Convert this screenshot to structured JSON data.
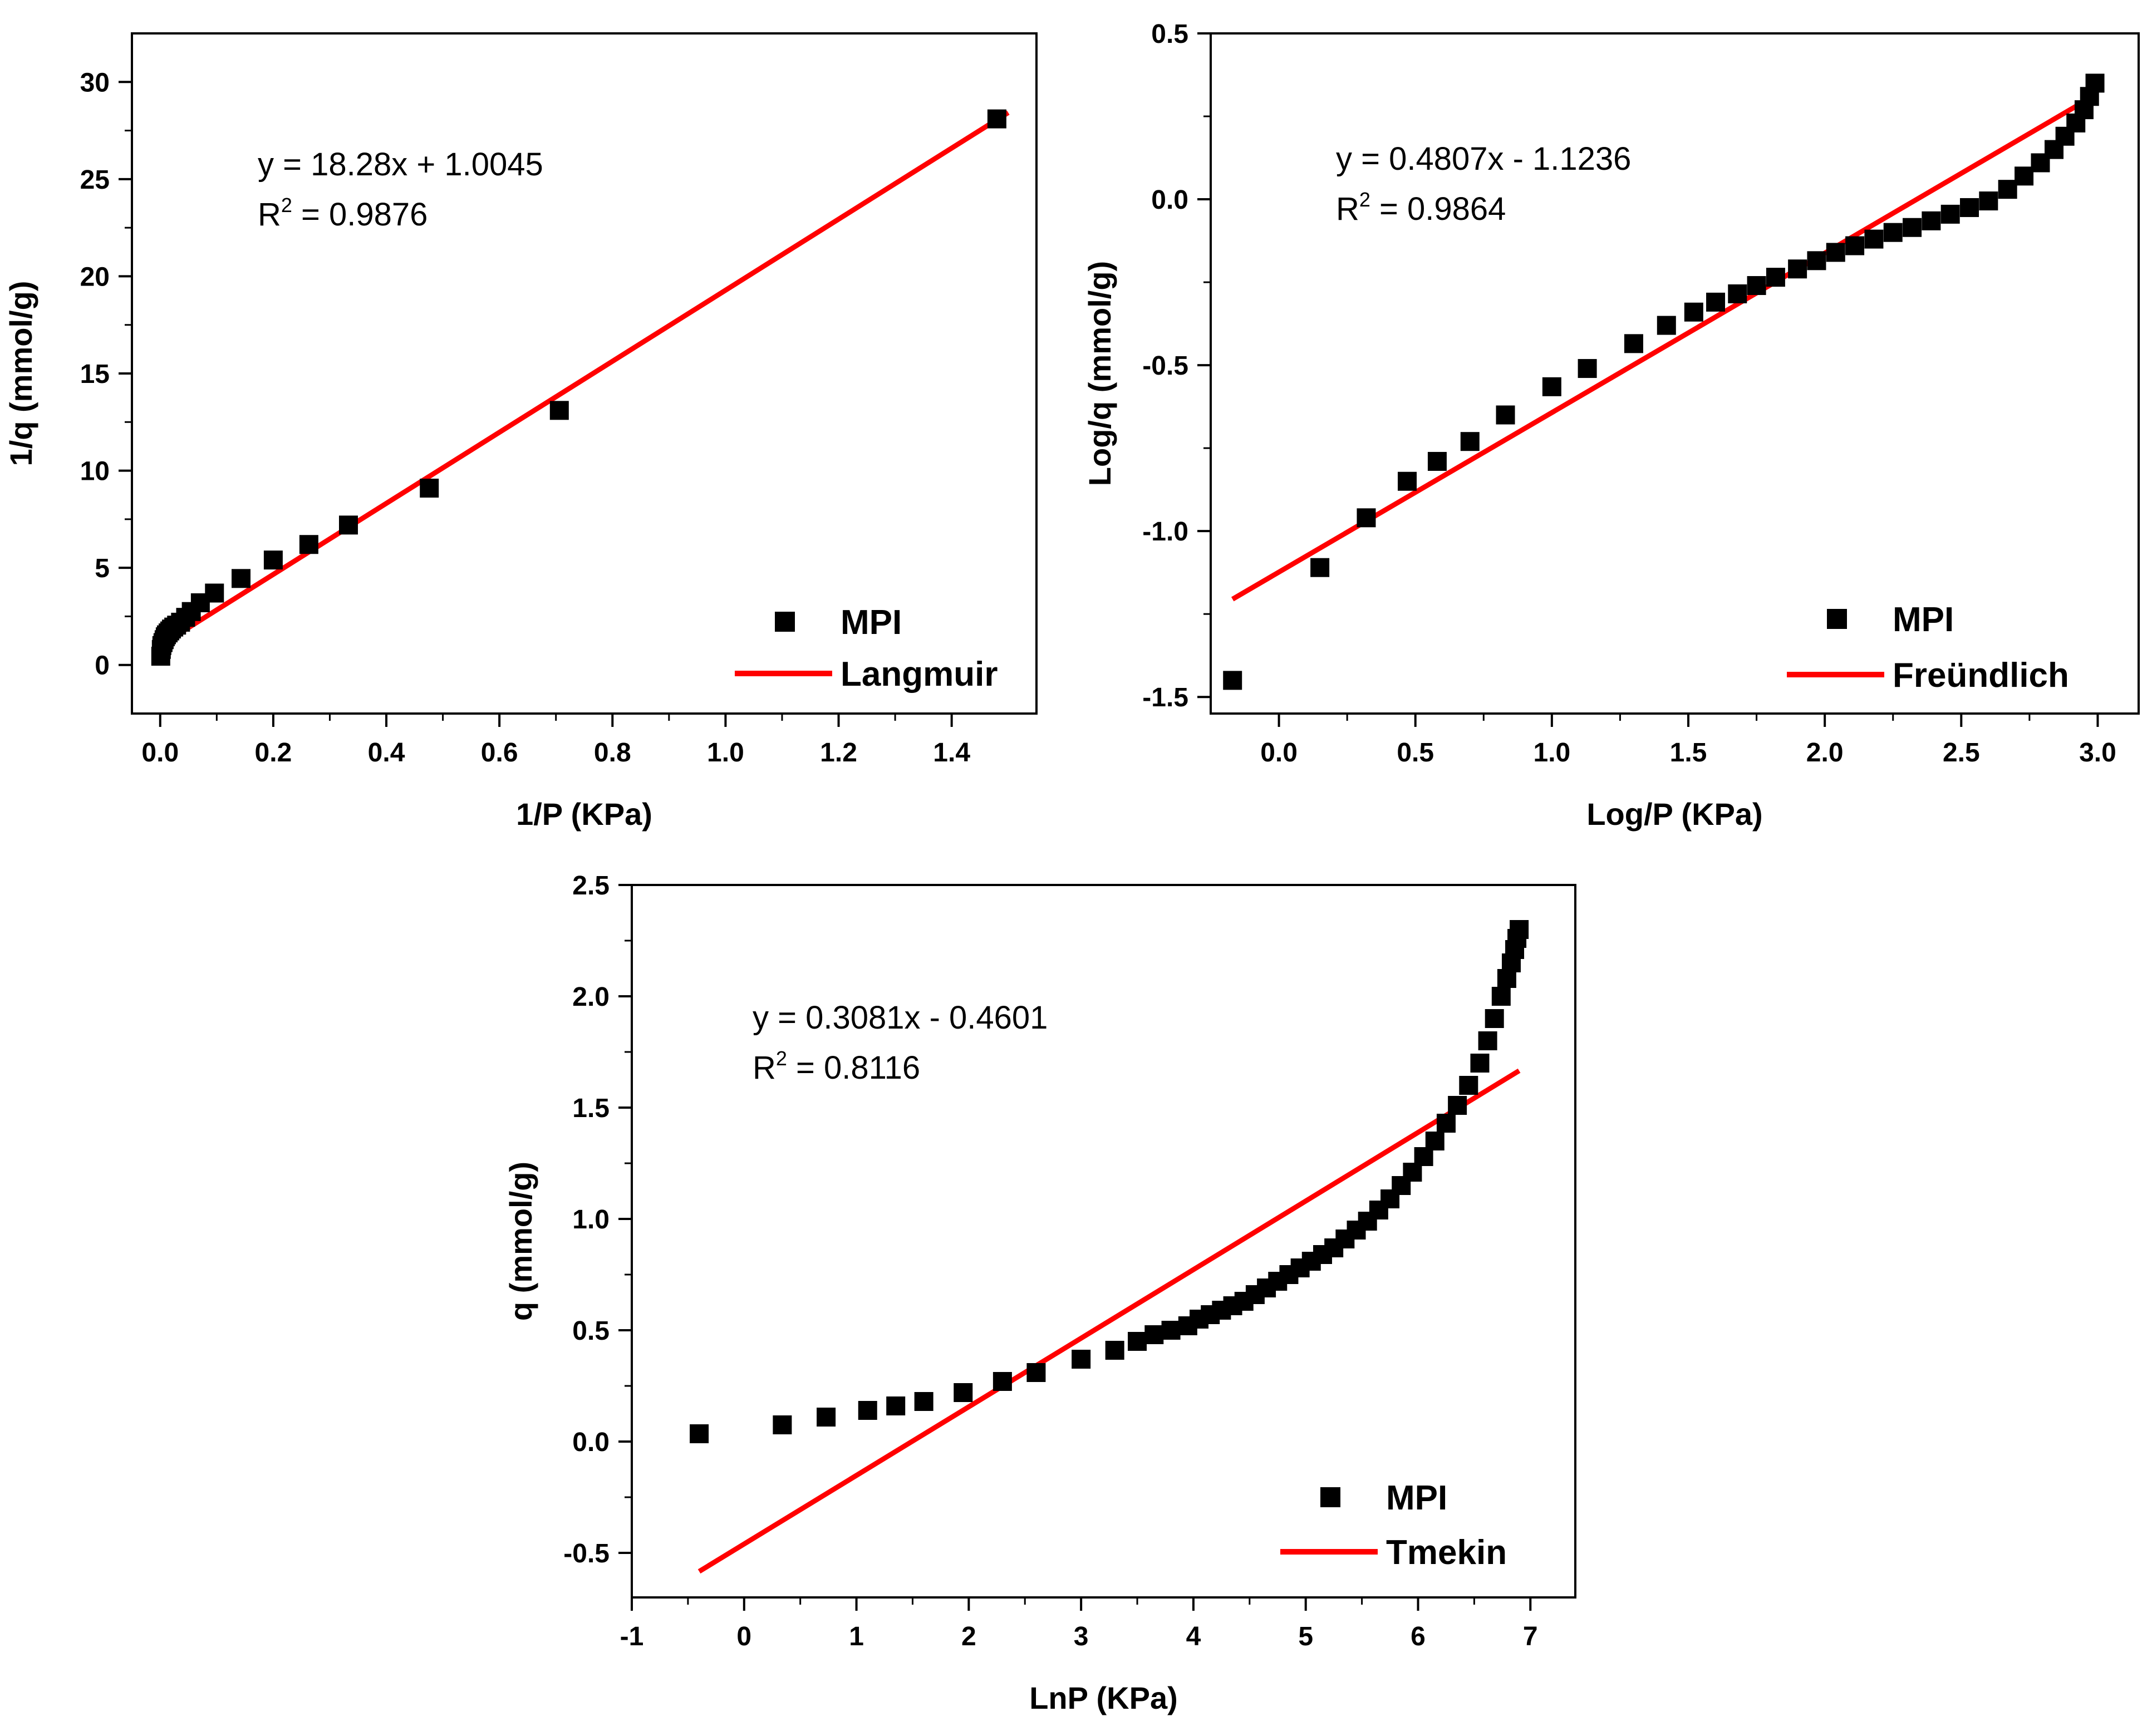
{
  "colors": {
    "points": "#000000",
    "fit": "#ff0000",
    "axes": "#000000"
  },
  "chart_data": [
    {
      "type": "scatter",
      "title": "",
      "xlabel": "1/P (KPa)",
      "ylabel": "1/q (mmol/g)",
      "xlim": [
        -0.05,
        1.55
      ],
      "ylim": [
        -2.5,
        32.5
      ],
      "xticks": [
        0.0,
        0.2,
        0.4,
        0.6,
        0.8,
        1.0,
        1.2,
        1.4
      ],
      "xtick_labels": [
        "0.0",
        "0.2",
        "0.4",
        "0.6",
        "0.8",
        "1.0",
        "1.2",
        "1.4"
      ],
      "yticks": [
        0,
        5,
        10,
        15,
        20,
        25,
        30
      ],
      "ytick_labels": [
        "0",
        "5",
        "10",
        "15",
        "20",
        "25",
        "30"
      ],
      "equation": "y = 18.28x + 1.0045",
      "r2_label": "R",
      "r2_sup": "2",
      "r2_value": " = 0.9876",
      "legend": {
        "position": "bottom-right",
        "points_label": "MPI",
        "line_label": "Langmuir"
      },
      "series": [
        {
          "name": "MPI",
          "kind": "points",
          "x": [
            0.001,
            0.002,
            0.003,
            0.005,
            0.007,
            0.009,
            0.011,
            0.014,
            0.017,
            0.02,
            0.024,
            0.029,
            0.036,
            0.045,
            0.055,
            0.071,
            0.096,
            0.143,
            0.2,
            0.263,
            0.333,
            0.476,
            0.706,
            1.48
          ],
          "y": [
            0.45,
            0.8,
            1.0,
            1.15,
            1.3,
            1.45,
            1.55,
            1.65,
            1.75,
            1.85,
            1.95,
            2.05,
            2.2,
            2.45,
            2.75,
            3.2,
            3.7,
            4.45,
            5.4,
            6.2,
            7.2,
            9.1,
            13.1,
            28.1
          ]
        },
        {
          "name": "Langmuir",
          "kind": "line",
          "slope": 18.28,
          "intercept": 1.0045,
          "x_range": [
            0.0,
            1.5
          ]
        }
      ]
    },
    {
      "type": "scatter",
      "title": "",
      "xlabel": "Log/P (KPa)",
      "ylabel": "Log/q (mmol/g)",
      "xlim": [
        -0.25,
        3.15
      ],
      "ylim": [
        -1.55,
        0.5
      ],
      "xticks": [
        0.0,
        0.5,
        1.0,
        1.5,
        2.0,
        2.5,
        3.0
      ],
      "xtick_labels": [
        "0.0",
        "0.5",
        "1.0",
        "1.5",
        "2.0",
        "2.5",
        "3.0"
      ],
      "yticks": [
        -1.5,
        -1.0,
        -0.5,
        0.0,
        0.5
      ],
      "ytick_labels": [
        "-1.5",
        "-1.0",
        "-0.5",
        "0.0",
        "0.5"
      ],
      "equation": "y = 0.4807x - 1.1236",
      "r2_label": "R",
      "r2_sup": "2",
      "r2_value": " = 0.9864",
      "legend": {
        "position": "bottom-right",
        "points_label": "MPI",
        "line_label": "Freündlich"
      },
      "series": [
        {
          "name": "MPI",
          "kind": "points",
          "x": [
            -0.17,
            0.15,
            0.32,
            0.47,
            0.58,
            0.7,
            0.83,
            1.0,
            1.13,
            1.3,
            1.42,
            1.52,
            1.6,
            1.68,
            1.75,
            1.82,
            1.9,
            1.97,
            2.04,
            2.11,
            2.18,
            2.25,
            2.32,
            2.39,
            2.46,
            2.53,
            2.6,
            2.67,
            2.73,
            2.79,
            2.84,
            2.88,
            2.92,
            2.95,
            2.97,
            2.99
          ],
          "y": [
            -1.45,
            -1.11,
            -0.96,
            -0.85,
            -0.79,
            -0.73,
            -0.65,
            -0.565,
            -0.51,
            -0.435,
            -0.38,
            -0.34,
            -0.31,
            -0.285,
            -0.26,
            -0.235,
            -0.21,
            -0.185,
            -0.16,
            -0.14,
            -0.12,
            -0.1,
            -0.085,
            -0.065,
            -0.045,
            -0.025,
            -0.005,
            0.03,
            0.07,
            0.11,
            0.15,
            0.19,
            0.23,
            0.27,
            0.31,
            0.35
          ]
        },
        {
          "name": "Freündlich",
          "kind": "line",
          "slope": 0.4807,
          "intercept": -1.1236,
          "x_range": [
            -0.17,
            3.0
          ]
        }
      ]
    },
    {
      "type": "scatter",
      "title": "",
      "xlabel": "LnP (KPa)",
      "ylabel": "q (mmol/g)",
      "xlim": [
        -1.0,
        7.4
      ],
      "ylim": [
        -0.7,
        2.5
      ],
      "xticks": [
        -1,
        0,
        1,
        2,
        3,
        4,
        5,
        6,
        7
      ],
      "xtick_labels": [
        "-1",
        "0",
        "1",
        "2",
        "3",
        "4",
        "5",
        "6",
        "7"
      ],
      "yticks": [
        -0.5,
        0.0,
        0.5,
        1.0,
        1.5,
        2.0,
        2.5
      ],
      "ytick_labels": [
        "-0.5",
        "0.0",
        "0.5",
        "1.0",
        "1.5",
        "2.0",
        "2.5"
      ],
      "equation": "y = 0.3081x - 0.4601",
      "r2_label": "R",
      "r2_sup": "2",
      "r2_value": " = 0.8116",
      "legend": {
        "position": "bottom-right",
        "points_label": "MPI",
        "line_label": "Tmekin"
      },
      "series": [
        {
          "name": "MPI",
          "kind": "points",
          "x": [
            -0.4,
            0.34,
            0.73,
            1.1,
            1.35,
            1.6,
            1.95,
            2.3,
            2.6,
            3.0,
            3.3,
            3.5,
            3.65,
            3.8,
            3.95,
            4.05,
            4.15,
            4.25,
            4.35,
            4.45,
            4.55,
            4.65,
            4.75,
            4.85,
            4.95,
            5.05,
            5.15,
            5.25,
            5.35,
            5.45,
            5.55,
            5.65,
            5.75,
            5.85,
            5.95,
            6.05,
            6.15,
            6.25,
            6.35,
            6.45,
            6.55,
            6.62,
            6.68,
            6.74,
            6.79,
            6.83,
            6.86,
            6.88,
            6.9
          ],
          "y": [
            0.035,
            0.075,
            0.11,
            0.14,
            0.16,
            0.18,
            0.22,
            0.27,
            0.31,
            0.37,
            0.41,
            0.45,
            0.48,
            0.5,
            0.52,
            0.55,
            0.57,
            0.59,
            0.61,
            0.63,
            0.66,
            0.69,
            0.72,
            0.75,
            0.78,
            0.81,
            0.84,
            0.87,
            0.91,
            0.95,
            0.99,
            1.04,
            1.09,
            1.15,
            1.21,
            1.28,
            1.35,
            1.43,
            1.51,
            1.6,
            1.7,
            1.8,
            1.9,
            2.0,
            2.08,
            2.15,
            2.21,
            2.26,
            2.3
          ]
        },
        {
          "name": "Tmekin",
          "kind": "line",
          "slope": 0.3081,
          "intercept": -0.4601,
          "x_range": [
            -0.4,
            6.9
          ]
        }
      ]
    }
  ]
}
